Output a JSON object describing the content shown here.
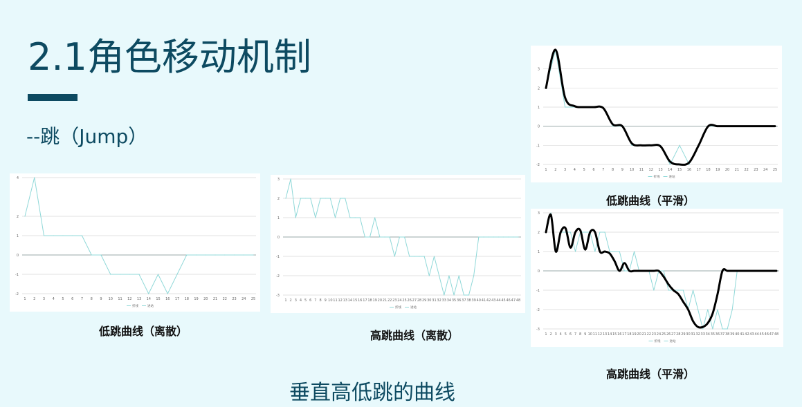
{
  "slide": {
    "title": "2.1角色移动机制",
    "subtitle": "--跳（Jump）",
    "footer": "垂直高低跳的曲线"
  },
  "colors": {
    "accent": "#0d4a61",
    "line": "#8fd8d8",
    "smooth": "#000000",
    "grid": "#d9d9d9"
  },
  "charts": [
    {
      "caption": "低跳曲线（离散）",
      "chart_data": {
        "type": "line",
        "x": [
          1,
          2,
          3,
          4,
          5,
          6,
          7,
          8,
          9,
          10,
          11,
          12,
          13,
          14,
          15,
          16,
          17,
          18,
          19,
          20,
          21,
          22,
          23,
          24,
          25
        ],
        "series": [
          {
            "name": "折线",
            "values": [
              2,
              4,
              1,
              1,
              1,
              1,
              1,
              0,
              0,
              -1,
              -1,
              -1,
              -1,
              -2,
              -1,
              -2,
              -1,
              0,
              0,
              0,
              0,
              0,
              0,
              0,
              0
            ]
          }
        ],
        "ylim": [
          -2,
          4
        ],
        "yticks": [
          -2,
          -1,
          0,
          1,
          2,
          4
        ],
        "legend": [
          "折线",
          "进站"
        ]
      }
    },
    {
      "caption": "高跳曲线（离散）",
      "chart_data": {
        "type": "line",
        "x": [
          1,
          2,
          3,
          4,
          5,
          6,
          7,
          8,
          9,
          10,
          11,
          12,
          13,
          14,
          15,
          16,
          17,
          18,
          19,
          20,
          21,
          22,
          23,
          24,
          25,
          26,
          27,
          28,
          29,
          30,
          31,
          32,
          33,
          34,
          35,
          36,
          37,
          38,
          39,
          40,
          41,
          42,
          43,
          44,
          45,
          46,
          47,
          48
        ],
        "series": [
          {
            "name": "折线",
            "values": [
              2,
              3,
              1,
              2,
              2,
              2,
              1,
              2,
              2,
              2,
              1,
              2,
              2,
              1,
              1,
              1,
              0,
              0,
              1,
              0,
              0,
              0,
              -1,
              0,
              0,
              -1,
              -1,
              -1,
              -1,
              -2,
              -1,
              -2,
              -3,
              -2,
              -3,
              -2,
              -3,
              -3,
              -2,
              0,
              0,
              0,
              0,
              0,
              0,
              0,
              0,
              0
            ]
          }
        ],
        "ylim": [
          -3,
          3
        ],
        "yticks": [
          -3,
          -2,
          -1,
          0,
          1,
          2,
          3
        ],
        "legend": [
          "折线",
          "进站"
        ]
      }
    },
    {
      "caption": "低跳曲线（平滑）",
      "chart_data": {
        "type": "line",
        "x": [
          1,
          2,
          3,
          4,
          5,
          6,
          7,
          8,
          9,
          10,
          11,
          12,
          13,
          14,
          15,
          16,
          17,
          18,
          19,
          20,
          21,
          22,
          23,
          24,
          25
        ],
        "series": [
          {
            "name": "折线",
            "values": [
              2,
              4,
              1,
              1,
              1,
              1,
              1,
              0,
              0,
              -1,
              -1,
              -1,
              -1,
              -2,
              -1,
              -2,
              -1,
              0,
              0,
              0,
              0,
              0,
              0,
              0,
              0
            ]
          },
          {
            "name": "平滑",
            "values": [
              2,
              4,
              1.5,
              1.05,
              1,
              1,
              0.95,
              0.1,
              0,
              -0.9,
              -1,
              -1,
              -1.05,
              -1.85,
              -2,
              -1.9,
              -1,
              0,
              0,
              0,
              0,
              0,
              0,
              0,
              0
            ]
          }
        ],
        "ylim": [
          -2,
          4
        ],
        "yticks": [
          -2,
          -1,
          0,
          1,
          2,
          3
        ],
        "legend": [
          "折线",
          "进站"
        ]
      }
    },
    {
      "caption": "高跳曲线（平滑）",
      "chart_data": {
        "type": "line",
        "x": [
          1,
          2,
          3,
          4,
          5,
          6,
          7,
          8,
          9,
          10,
          11,
          12,
          13,
          14,
          15,
          16,
          17,
          18,
          19,
          20,
          21,
          22,
          23,
          24,
          25,
          26,
          27,
          28,
          29,
          30,
          31,
          32,
          33,
          34,
          35,
          36,
          37,
          38,
          39,
          40,
          41,
          42,
          43,
          44,
          45,
          46,
          47,
          48
        ],
        "series": [
          {
            "name": "折线",
            "values": [
              2,
              3,
              1,
              2,
              2,
              2,
              1,
              2,
              2,
              2,
              1,
              2,
              2,
              1,
              1,
              1,
              0,
              0,
              1,
              0,
              0,
              0,
              -1,
              0,
              0,
              -1,
              -1,
              -1,
              -1,
              -2,
              -1,
              -2,
              -3,
              -2,
              -3,
              -2,
              -3,
              -3,
              -2,
              0,
              0,
              0,
              0,
              0,
              0,
              0,
              0,
              0
            ]
          },
          {
            "name": "平滑",
            "values": [
              2,
              2.9,
              1,
              2,
              2.2,
              1.2,
              2,
              2.1,
              1.1,
              2,
              2,
              1,
              1,
              0.9,
              0.5,
              0,
              0.4,
              0,
              0,
              0,
              0,
              0,
              0,
              0,
              -0.3,
              -0.7,
              -1,
              -1.2,
              -1.6,
              -2,
              -2.6,
              -2.9,
              -2.9,
              -2.7,
              -2.2,
              -1.2,
              0,
              0,
              0,
              0,
              0,
              0,
              0,
              0,
              0,
              0,
              0,
              0
            ]
          }
        ],
        "ylim": [
          -3,
          3
        ],
        "yticks": [
          -3,
          -2,
          -1,
          0,
          1,
          2,
          3
        ],
        "legend": [
          "折线",
          "进站"
        ]
      }
    }
  ]
}
